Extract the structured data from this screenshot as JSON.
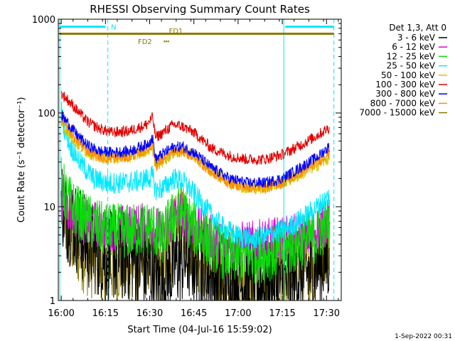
{
  "chart_data": {
    "type": "line",
    "title": "RHESSI Observing Summary Count Rates",
    "xlabel": "Start Time (04-Jul-16 15:59:02)",
    "ylabel": "Count Rate (s⁻¹ detector⁻¹)",
    "yscale": "log",
    "ylim": [
      1,
      1000
    ],
    "xlim_minutes": [
      0,
      96
    ],
    "x_ticks": [
      "16:00",
      "16:15",
      "16:30",
      "16:45",
      "17:00",
      "17:15",
      "17:30"
    ],
    "x_tick_minutes": [
      1,
      16,
      31,
      46,
      61,
      76,
      91
    ],
    "y_ticks": [
      "1",
      "10",
      "100",
      "1000"
    ],
    "y_tick_values": [
      1,
      10,
      100,
      1000
    ],
    "legend_header": "Det 1,3, Att 0",
    "legend_position": "right",
    "footer_date": "1-Sep-2022 00:31",
    "series": [
      {
        "name": "3 - 6 keV",
        "color": "#000000",
        "points": [
          [
            1,
            12
          ],
          [
            3,
            8
          ],
          [
            6,
            6
          ],
          [
            10,
            4
          ],
          [
            16,
            3
          ],
          [
            25,
            3
          ],
          [
            32,
            2
          ],
          [
            35,
            1.5
          ],
          [
            40,
            2.5
          ],
          [
            45,
            3
          ],
          [
            50,
            2
          ],
          [
            55,
            1.5
          ],
          [
            65,
            1.5
          ],
          [
            75,
            1.5
          ],
          [
            85,
            2
          ],
          [
            92,
            3
          ]
        ],
        "noise": 0.5,
        "min_clip": 1
      },
      {
        "name": "6 - 12 keV",
        "color": "#e000e0",
        "points": [
          [
            1,
            14
          ],
          [
            3,
            10
          ],
          [
            6,
            8
          ],
          [
            10,
            7
          ],
          [
            16,
            6
          ],
          [
            25,
            6
          ],
          [
            32,
            6.5
          ],
          [
            35,
            5
          ],
          [
            38,
            7
          ],
          [
            41,
            9
          ],
          [
            44,
            7
          ],
          [
            50,
            5
          ],
          [
            56,
            4
          ],
          [
            65,
            4
          ],
          [
            75,
            4.5
          ],
          [
            85,
            5
          ],
          [
            92,
            7
          ]
        ],
        "noise": 0.25
      },
      {
        "name": "12 - 25 keV",
        "color": "#00e000",
        "points": [
          [
            1,
            18
          ],
          [
            3,
            12
          ],
          [
            6,
            9
          ],
          [
            10,
            7
          ],
          [
            16,
            5.5
          ],
          [
            25,
            5.5
          ],
          [
            32,
            6
          ],
          [
            35,
            4.5
          ],
          [
            38,
            7
          ],
          [
            42,
            9
          ],
          [
            46,
            6
          ],
          [
            52,
            4
          ],
          [
            58,
            3
          ],
          [
            68,
            3
          ],
          [
            78,
            3.5
          ],
          [
            88,
            5
          ],
          [
            92,
            7
          ]
        ],
        "noise": 0.3
      },
      {
        "name": "25 - 50 keV",
        "color": "#00e8ff",
        "points": [
          [
            1,
            110
          ],
          [
            2,
            70
          ],
          [
            4,
            45
          ],
          [
            8,
            28
          ],
          [
            12,
            20
          ],
          [
            16,
            18
          ],
          [
            22,
            18
          ],
          [
            28,
            19
          ],
          [
            32,
            21
          ],
          [
            33,
            15
          ],
          [
            36,
            16
          ],
          [
            39,
            20
          ],
          [
            42,
            19
          ],
          [
            46,
            14
          ],
          [
            52,
            8
          ],
          [
            56,
            6
          ],
          [
            60,
            5
          ],
          [
            66,
            4.5
          ],
          [
            72,
            5
          ],
          [
            78,
            6
          ],
          [
            84,
            8
          ],
          [
            88,
            10
          ],
          [
            92,
            13
          ]
        ],
        "noise": 0.12
      },
      {
        "name": "50 - 100 keV",
        "color": "#d8c800",
        "points": [
          [
            1,
            75
          ],
          [
            3,
            65
          ],
          [
            6,
            48
          ],
          [
            10,
            38
          ],
          [
            14,
            34
          ],
          [
            18,
            33
          ],
          [
            24,
            35
          ],
          [
            30,
            40
          ],
          [
            32,
            42
          ],
          [
            33,
            28
          ],
          [
            35,
            30
          ],
          [
            39,
            38
          ],
          [
            42,
            40
          ],
          [
            46,
            35
          ],
          [
            52,
            24
          ],
          [
            58,
            18
          ],
          [
            64,
            16
          ],
          [
            70,
            16
          ],
          [
            76,
            18
          ],
          [
            82,
            22
          ],
          [
            88,
            28
          ],
          [
            92,
            33
          ]
        ],
        "noise": 0.07
      },
      {
        "name": "100 - 300 keV",
        "color": "#e00000",
        "points": [
          [
            1,
            160
          ],
          [
            3,
            140
          ],
          [
            6,
            110
          ],
          [
            10,
            80
          ],
          [
            14,
            68
          ],
          [
            18,
            62
          ],
          [
            24,
            64
          ],
          [
            30,
            75
          ],
          [
            32,
            90
          ],
          [
            33,
            55
          ],
          [
            35,
            60
          ],
          [
            39,
            75
          ],
          [
            42,
            72
          ],
          [
            46,
            62
          ],
          [
            52,
            42
          ],
          [
            58,
            35
          ],
          [
            64,
            32
          ],
          [
            70,
            32
          ],
          [
            76,
            36
          ],
          [
            82,
            45
          ],
          [
            88,
            58
          ],
          [
            92,
            70
          ]
        ],
        "noise": 0.06
      },
      {
        "name": "300 - 800 keV",
        "color": "#0000ff",
        "points": [
          [
            1,
            95
          ],
          [
            3,
            80
          ],
          [
            6,
            60
          ],
          [
            10,
            45
          ],
          [
            14,
            39
          ],
          [
            18,
            38
          ],
          [
            24,
            39
          ],
          [
            30,
            46
          ],
          [
            32,
            54
          ],
          [
            33,
            32
          ],
          [
            35,
            36
          ],
          [
            39,
            43
          ],
          [
            42,
            44
          ],
          [
            46,
            38
          ],
          [
            52,
            26
          ],
          [
            58,
            20
          ],
          [
            64,
            18
          ],
          [
            70,
            18
          ],
          [
            76,
            20
          ],
          [
            82,
            26
          ],
          [
            88,
            34
          ],
          [
            92,
            44
          ]
        ],
        "noise": 0.06
      },
      {
        "name": "800 - 7000 keV",
        "color": "#ff8c00",
        "points": [
          [
            1,
            85
          ],
          [
            3,
            70
          ],
          [
            6,
            52
          ],
          [
            10,
            40
          ],
          [
            14,
            34
          ],
          [
            18,
            33
          ],
          [
            24,
            34
          ],
          [
            30,
            40
          ],
          [
            32,
            46
          ],
          [
            33,
            27
          ],
          [
            35,
            31
          ],
          [
            39,
            38
          ],
          [
            42,
            39
          ],
          [
            46,
            34
          ],
          [
            52,
            23
          ],
          [
            58,
            18
          ],
          [
            64,
            16
          ],
          [
            70,
            16
          ],
          [
            76,
            18
          ],
          [
            82,
            23
          ],
          [
            88,
            30
          ],
          [
            92,
            38
          ]
        ],
        "noise": 0.06
      },
      {
        "name": "7000 - 15000 keV",
        "color": "#8c7a00",
        "points": [
          [
            1,
            10
          ],
          [
            3,
            6
          ],
          [
            6,
            4
          ],
          [
            10,
            3
          ],
          [
            16,
            2.5
          ],
          [
            25,
            2.5
          ],
          [
            32,
            3
          ],
          [
            35,
            2
          ],
          [
            38,
            4
          ],
          [
            42,
            6
          ],
          [
            46,
            4
          ],
          [
            52,
            2
          ],
          [
            60,
            1.5
          ],
          [
            70,
            1.5
          ],
          [
            80,
            2
          ],
          [
            88,
            3
          ],
          [
            92,
            5
          ]
        ],
        "noise": 0.45,
        "min_clip": 1
      }
    ],
    "annotations": [
      {
        "text": "N",
        "color": "#00e8ff"
      },
      {
        "text": "FD1",
        "color": "#8c7a00"
      },
      {
        "text": "FD2",
        "color": "#8c7a00"
      }
    ],
    "vertical_lines": [
      {
        "minute": 0.5,
        "style": "solid",
        "color": "#00e8ff"
      },
      {
        "minute": 16.8,
        "style": "dashed",
        "color": "#00e8ff"
      },
      {
        "minute": 76.5,
        "style": "solid",
        "color": "#00e8ff"
      },
      {
        "minute": 93.5,
        "style": "dashed",
        "color": "#00e8ff"
      }
    ],
    "horizontal_bars": [
      {
        "name": "night-bar-left",
        "minute_start": 0.5,
        "minute_end": 16,
        "y": 830,
        "color": "#00e8ff"
      },
      {
        "name": "night-bar-right",
        "minute_start": 77,
        "minute_end": 93.5,
        "y": 830,
        "color": "#00e8ff"
      },
      {
        "name": "flare-bar",
        "minute_start": 0.5,
        "minute_end": 93.5,
        "y": 700,
        "color": "#8c7a00"
      }
    ]
  }
}
